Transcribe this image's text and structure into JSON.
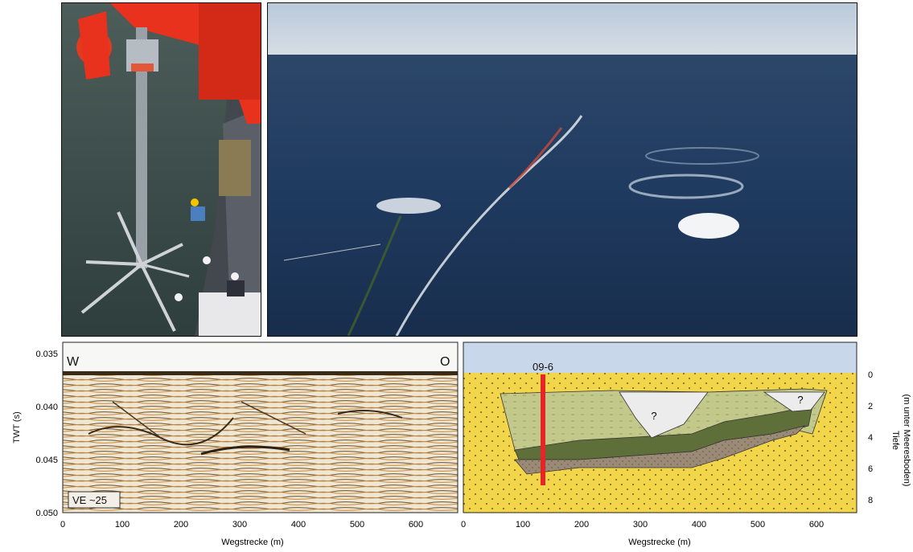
{
  "seismic_panel": {
    "corner_left": "W",
    "corner_right": "O",
    "ve_label": "VE ~25",
    "y_axis_title": "TWT (s)",
    "y_ticks": [
      "0.035",
      "0.040",
      "0.045",
      "0.050"
    ],
    "x_ticks": [
      "0",
      "100",
      "200",
      "300",
      "400",
      "500",
      "600"
    ],
    "x_axis_title": "Wegstrecke (m)"
  },
  "interpretation_panel": {
    "core_label": "09-6",
    "unknown_markers": [
      "?",
      "?"
    ],
    "y_ticks": [
      "0",
      "2",
      "4",
      "6",
      "8"
    ],
    "x_ticks": [
      "0",
      "100",
      "200",
      "300",
      "400",
      "500",
      "600"
    ],
    "x_axis_title": "Wegstrecke (m)",
    "y_axis_title": "Tiefe",
    "y_axis_subtitle": "(m unter Meeresboden)"
  },
  "colors": {
    "water": "#c8d7ea",
    "sand": "#f3d54a",
    "fill_light_green": "#c3c98a",
    "fill_dark_green": "#5f6f3a",
    "fill_brown": "#9b8a76",
    "unknown_fill": "#ececec",
    "core_red": "#e52626",
    "crane_red": "#e8321d",
    "sea_dark": "#1f3a5f"
  }
}
